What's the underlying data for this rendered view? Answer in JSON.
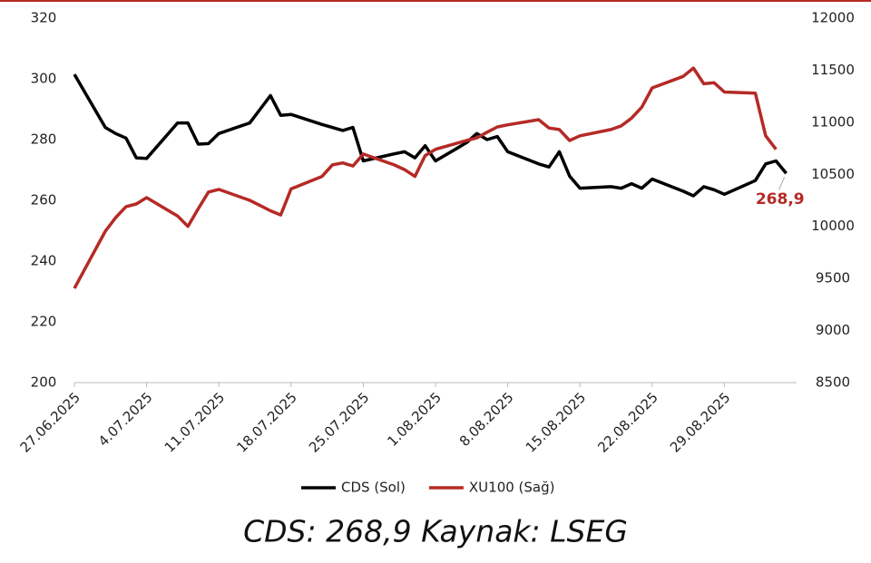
{
  "chart_data": {
    "type": "line",
    "x": [
      "27.06.2025",
      "30.06.2025",
      "1.07.2025",
      "2.07.2025",
      "3.07.2025",
      "4.07.2025",
      "7.07.2025",
      "8.07.2025",
      "9.07.2025",
      "10.07.2025",
      "11.07.2025",
      "14.07.2025",
      "15.07.2025",
      "16.07.2025",
      "17.07.2025",
      "18.07.2025",
      "21.07.2025",
      "22.07.2025",
      "23.07.2025",
      "24.07.2025",
      "25.07.2025",
      "28.07.2025",
      "29.07.2025",
      "30.07.2025",
      "31.07.2025",
      "1.08.2025",
      "4.08.2025",
      "5.08.2025",
      "6.08.2025",
      "7.08.2025",
      "8.08.2025",
      "11.08.2025",
      "12.08.2025",
      "13.08.2025",
      "14.08.2025",
      "15.08.2025",
      "18.08.2025",
      "19.08.2025",
      "20.08.2025",
      "21.08.2025",
      "22.08.2025",
      "25.08.2025",
      "26.08.2025",
      "27.08.2025",
      "28.08.2025",
      "29.08.2025",
      "1.09.2025",
      "2.09.2025",
      "3.09.2025",
      "4.09.2025"
    ],
    "series": [
      {
        "name": "CDS (Sol)",
        "color": "#000000",
        "values": [
          301.5,
          284,
          282,
          280.5,
          274,
          273.8,
          285.5,
          285.5,
          278.5,
          278.7,
          282,
          285.5,
          290,
          294.5,
          288,
          288.3,
          285,
          284,
          283,
          284,
          273,
          275.3,
          276,
          274,
          278,
          273,
          279,
          282,
          280,
          281,
          276,
          272,
          271,
          276,
          268,
          264,
          264.5,
          264,
          265.5,
          264,
          267,
          263,
          261.5,
          264.5,
          263.5,
          262,
          266.5,
          272,
          273,
          268.9
        ]
      },
      {
        "name": "XU100 (Sağ)",
        "color": "#b52a26",
        "axis": "y2",
        "values": [
          9405,
          9954,
          10085,
          10190,
          10215,
          10276,
          10100,
          10000,
          10170,
          10330,
          10355,
          10250,
          10200,
          10150,
          10110,
          10360,
          10480,
          10590,
          10610,
          10580,
          10695,
          10590,
          10545,
          10480,
          10680,
          10740,
          10825,
          10850,
          10905,
          10955,
          10975,
          11025,
          10945,
          10930,
          10825,
          10870,
          10930,
          10965,
          11040,
          11145,
          11330,
          11440,
          11520,
          11370,
          11380,
          11290,
          11280,
          10870,
          10740,
          null
        ]
      }
    ],
    "xlim": [
      "27.06.2025",
      "5.09.2025"
    ],
    "xticks": [
      "27.06.2025",
      "4.07.2025",
      "11.07.2025",
      "18.07.2025",
      "25.07.2025",
      "1.08.2025",
      "8.08.2025",
      "15.08.2025",
      "22.08.2025",
      "29.08.2025"
    ],
    "ylim": [
      200,
      320
    ],
    "yticks": [
      200,
      220,
      240,
      260,
      280,
      300,
      320
    ],
    "y2lim": [
      8500,
      12000
    ],
    "y2ticks": [
      8500,
      9000,
      9500,
      10000,
      10500,
      11000,
      11500,
      12000
    ],
    "annotation": "268,9",
    "footer": "CDS: 268,9 Kaynak: LSEG",
    "legend": "bottom"
  }
}
